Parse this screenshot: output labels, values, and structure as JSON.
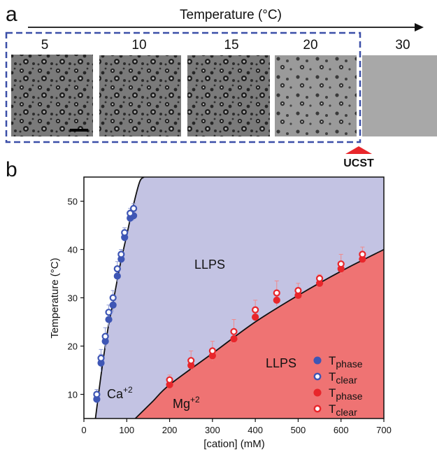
{
  "panel_a": {
    "letter": "a",
    "arrow_title": "Temperature (°C)",
    "images": [
      {
        "temperature": "5",
        "state": "droplets"
      },
      {
        "temperature": "10",
        "state": "droplets"
      },
      {
        "temperature": "15",
        "state": "droplets"
      },
      {
        "temperature": "20",
        "state": "droplets"
      },
      {
        "temperature": "30",
        "state": "clear"
      }
    ],
    "ucst_label": "UCST",
    "colors": {
      "box": "#3b4fa8",
      "ucst_marker": "#e8262b"
    }
  },
  "panel_b": {
    "letter": "b",
    "region_labels": {
      "llps_upper": "LLPS",
      "llps_lower": "LLPS",
      "ca": "Ca",
      "ca_sup": "+2",
      "mg": "Mg",
      "mg_sup": "+2"
    },
    "legend": [
      {
        "label": "T",
        "sub": "phase",
        "marker": "filled",
        "color": "#3e56b5"
      },
      {
        "label": "T",
        "sub": "clear",
        "marker": "open",
        "color": "#3e56b5"
      },
      {
        "label": "T",
        "sub": "phase",
        "marker": "filled",
        "color": "#e8262b"
      },
      {
        "label": "T",
        "sub": "clear",
        "marker": "open",
        "color": "#e8262b"
      }
    ],
    "colors": {
      "ca_region": "#c3c3e3",
      "mg_region": "#ef7373",
      "ca_points": "#3e56b5",
      "mg_points": "#e8262b"
    }
  },
  "chart_data": {
    "type": "scatter",
    "title": "",
    "xlabel": "[cation] (mM)",
    "ylabel": "Temperature (°C)",
    "xlim": [
      0,
      700
    ],
    "ylim": [
      5,
      55
    ],
    "xticks": [
      0,
      100,
      200,
      300,
      400,
      500,
      600,
      700
    ],
    "yticks": [
      10,
      20,
      30,
      40,
      50
    ],
    "grid": false,
    "legend_position": "bottom-right",
    "series": [
      {
        "name": "Ca⁺² T_phase",
        "marker": "filled",
        "color": "#3e56b5",
        "x": [
          30,
          40,
          50,
          58,
          68,
          78,
          87,
          95,
          108,
          116
        ],
        "y": [
          9,
          16.5,
          21,
          25.5,
          28.5,
          34.5,
          38,
          42.5,
          46.5,
          47
        ],
        "err": [
          1.0,
          1.8,
          1.5,
          1.5,
          1.5,
          1.2,
          1.0,
          1.0,
          1.0,
          1.0
        ]
      },
      {
        "name": "Ca⁺² T_clear",
        "marker": "open",
        "color": "#3e56b5",
        "x": [
          30,
          40,
          50,
          58,
          68,
          78,
          87,
          95,
          108,
          116
        ],
        "y": [
          10,
          17.5,
          22,
          27,
          30,
          36,
          39,
          43.5,
          47.5,
          48.5
        ],
        "err": [
          1.0,
          1.8,
          1.8,
          1.5,
          1.5,
          1.5,
          1.0,
          1.0,
          1.0,
          1.0
        ]
      },
      {
        "name": "Mg⁺² T_phase",
        "marker": "filled",
        "color": "#e8262b",
        "x": [
          200,
          250,
          300,
          350,
          400,
          450,
          500,
          550,
          600,
          650
        ],
        "y": [
          12,
          16,
          18,
          21.5,
          26,
          29.5,
          30.5,
          33,
          36,
          38
        ],
        "err": [
          0.5,
          0.5,
          0.5,
          1.0,
          0.5,
          1.2,
          0.8,
          0.8,
          1.0,
          0.8
        ]
      },
      {
        "name": "Mg⁺² T_clear",
        "marker": "open",
        "color": "#e8262b",
        "x": [
          200,
          250,
          300,
          350,
          400,
          450,
          500,
          550,
          600,
          650
        ],
        "y": [
          13,
          17,
          19,
          23,
          27.5,
          31,
          31.5,
          34,
          37,
          39
        ],
        "err": [
          1.0,
          2.0,
          2.0,
          2.5,
          2.0,
          2.5,
          1.5,
          0.8,
          2.0,
          1.5
        ]
      }
    ],
    "phase_boundaries": [
      {
        "name": "Ca",
        "x": [
          27,
          40,
          55,
          70,
          85,
          100,
          115,
          130,
          140
        ],
        "y": [
          5,
          14,
          23,
          30,
          37,
          43,
          49,
          54,
          55
        ]
      },
      {
        "name": "Mg",
        "x": [
          120,
          160,
          200,
          300,
          400,
          500,
          600,
          700
        ],
        "y": [
          5,
          8.5,
          12,
          18.5,
          25,
          30.5,
          35.5,
          40
        ]
      }
    ]
  }
}
